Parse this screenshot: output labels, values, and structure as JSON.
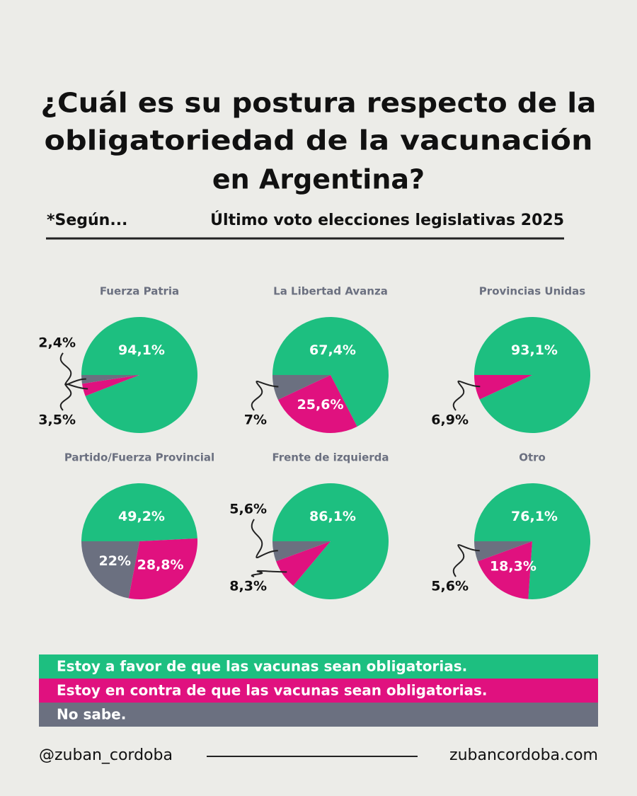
{
  "title": [
    "¿Cuál es su postura respecto de la",
    "obligatoriedad de la vacunación",
    "en Argentina?"
  ],
  "subtitle": {
    "prefix": "*Según...",
    "text": "Último voto elecciones legislativas 2025"
  },
  "legend": [
    {
      "label": "Estoy a favor de que las vacunas sean obligatorias.",
      "color": "#1dbf80"
    },
    {
      "label": "Estoy en contra de que las vacunas sean obligatorias.",
      "color": "#e0117f"
    },
    {
      "label": "No sabe.",
      "color": "#6b7080"
    }
  ],
  "chart_data": [
    {
      "type": "pie",
      "title": "Fuerza Patria",
      "values": [
        94.1,
        3.5,
        2.4
      ],
      "value_labels": [
        "94,1%",
        "3,5%",
        "2,4%"
      ]
    },
    {
      "type": "pie",
      "title": "La Libertad Avanza",
      "values": [
        67.4,
        25.6,
        7
      ],
      "value_labels": [
        "67,4%",
        "25,6%",
        "7%"
      ]
    },
    {
      "type": "pie",
      "title": "Provincias Unidas",
      "values": [
        93.1,
        6.9
      ],
      "value_labels": [
        "93,1%",
        "6,9%"
      ]
    },
    {
      "type": "pie",
      "title": "Partido/Fuerza Provincial",
      "values": [
        49.2,
        28.8,
        22
      ],
      "value_labels": [
        "49,2%",
        "28,8%",
        "22%"
      ]
    },
    {
      "type": "pie",
      "title": "Frente de izquierda",
      "values": [
        86.1,
        8.3,
        5.6
      ],
      "value_labels": [
        "86,1%",
        "8,3%",
        "5,6%"
      ]
    },
    {
      "type": "pie",
      "title": "Otro",
      "values": [
        76.1,
        18.3,
        5.6
      ],
      "value_labels": [
        "76,1%",
        "18,3%",
        "5,6%"
      ]
    }
  ],
  "footer": {
    "left": "@zuban_cordoba",
    "right": "zubancordoba.com"
  }
}
